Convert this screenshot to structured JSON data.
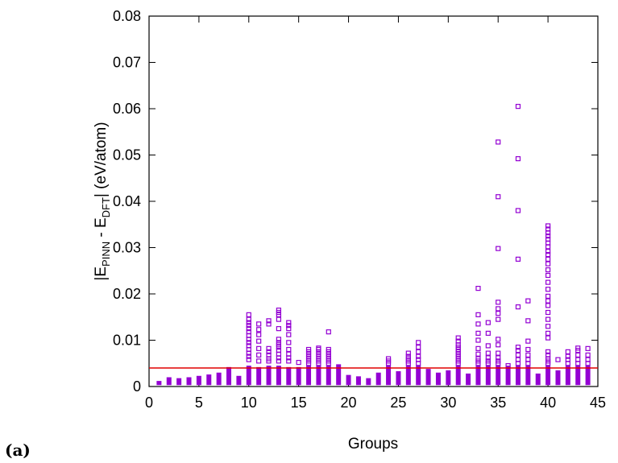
{
  "chart_data": {
    "type": "scatter",
    "xlabel": "Groups",
    "ylabel_parts": {
      "base1": "|E",
      "sub1": "PINN",
      "base2": " - E",
      "sub2": "DFT",
      "base3": "| (eV/atom)"
    },
    "xlim": [
      0,
      45
    ],
    "ylim": [
      0,
      0.08
    ],
    "xticks": [
      0,
      5,
      10,
      15,
      20,
      25,
      30,
      35,
      40,
      45
    ],
    "yticks": [
      0,
      0.01,
      0.02,
      0.03,
      0.04,
      0.05,
      0.06,
      0.07,
      0.08
    ],
    "ytick_labels": [
      "0",
      "0.01",
      "0.02",
      "0.03",
      "0.04",
      "0.05",
      "0.06",
      "0.07",
      "0.08"
    ],
    "grid": false,
    "marker": "open-square",
    "series_color": "#9400D3",
    "threshold_line": {
      "y": 0.004,
      "color": "#E00000"
    },
    "groups": [
      {
        "x": 1,
        "max": 0.0012,
        "outliers": []
      },
      {
        "x": 2,
        "max": 0.002,
        "outliers": []
      },
      {
        "x": 3,
        "max": 0.0018,
        "outliers": []
      },
      {
        "x": 4,
        "max": 0.002,
        "outliers": []
      },
      {
        "x": 5,
        "max": 0.0023,
        "outliers": []
      },
      {
        "x": 6,
        "max": 0.0026,
        "outliers": []
      },
      {
        "x": 7,
        "max": 0.003,
        "outliers": []
      },
      {
        "x": 8,
        "max": 0.0042,
        "outliers": []
      },
      {
        "x": 9,
        "max": 0.0023,
        "outliers": []
      },
      {
        "x": 10,
        "max": 0.0045,
        "outliers": [
          0.0058,
          0.0065,
          0.0072,
          0.008,
          0.0088,
          0.0095,
          0.0102,
          0.011,
          0.0118,
          0.0125,
          0.0132,
          0.0138,
          0.0145,
          0.0155
        ]
      },
      {
        "x": 11,
        "max": 0.0042,
        "outliers": [
          0.0055,
          0.0068,
          0.0082,
          0.0098,
          0.0112,
          0.0123,
          0.0135
        ]
      },
      {
        "x": 12,
        "max": 0.0045,
        "outliers": [
          0.0055,
          0.006,
          0.0068,
          0.0075,
          0.0082,
          0.0135,
          0.0142
        ]
      },
      {
        "x": 13,
        "max": 0.0045,
        "outliers": [
          0.0055,
          0.0062,
          0.007,
          0.0078,
          0.0085,
          0.009,
          0.0095,
          0.0102,
          0.0125,
          0.0145,
          0.0155,
          0.016,
          0.0165
        ]
      },
      {
        "x": 14,
        "max": 0.0042,
        "outliers": [
          0.0055,
          0.0062,
          0.007,
          0.008,
          0.0095,
          0.0112,
          0.0125,
          0.0132,
          0.0138
        ]
      },
      {
        "x": 15,
        "max": 0.0042,
        "outliers": [
          0.0052
        ]
      },
      {
        "x": 16,
        "max": 0.0045,
        "outliers": [
          0.005,
          0.0055,
          0.006,
          0.0065,
          0.007,
          0.0075,
          0.008
        ]
      },
      {
        "x": 17,
        "max": 0.0045,
        "outliers": [
          0.005,
          0.0055,
          0.006,
          0.0065,
          0.007,
          0.0075,
          0.008,
          0.0083
        ]
      },
      {
        "x": 18,
        "max": 0.0045,
        "outliers": [
          0.005,
          0.0055,
          0.006,
          0.0065,
          0.007,
          0.0075,
          0.008,
          0.0118
        ]
      },
      {
        "x": 19,
        "max": 0.0048,
        "outliers": []
      },
      {
        "x": 20,
        "max": 0.0025,
        "outliers": []
      },
      {
        "x": 21,
        "max": 0.0022,
        "outliers": []
      },
      {
        "x": 22,
        "max": 0.0018,
        "outliers": []
      },
      {
        "x": 23,
        "max": 0.003,
        "outliers": []
      },
      {
        "x": 24,
        "max": 0.0045,
        "outliers": [
          0.005,
          0.0055,
          0.006
        ]
      },
      {
        "x": 25,
        "max": 0.0033,
        "outliers": []
      },
      {
        "x": 26,
        "max": 0.0045,
        "outliers": [
          0.005,
          0.0055,
          0.006,
          0.0065,
          0.0072
        ]
      },
      {
        "x": 27,
        "max": 0.0045,
        "outliers": [
          0.005,
          0.0058,
          0.0065,
          0.0075,
          0.0085,
          0.0095
        ]
      },
      {
        "x": 28,
        "max": 0.0038,
        "outliers": []
      },
      {
        "x": 29,
        "max": 0.003,
        "outliers": []
      },
      {
        "x": 30,
        "max": 0.0035,
        "outliers": []
      },
      {
        "x": 31,
        "max": 0.0045,
        "outliers": [
          0.005,
          0.0055,
          0.006,
          0.0065,
          0.007,
          0.0075,
          0.008,
          0.0085,
          0.009,
          0.0098,
          0.0105
        ]
      },
      {
        "x": 32,
        "max": 0.0028,
        "outliers": []
      },
      {
        "x": 33,
        "max": 0.0045,
        "outliers": [
          0.005,
          0.0055,
          0.006,
          0.007,
          0.0082,
          0.01,
          0.0115,
          0.0135,
          0.0155,
          0.0212
        ]
      },
      {
        "x": 34,
        "max": 0.0045,
        "outliers": [
          0.005,
          0.0055,
          0.0062,
          0.0072,
          0.0088,
          0.0115,
          0.0138
        ]
      },
      {
        "x": 35,
        "max": 0.0045,
        "outliers": [
          0.005,
          0.0055,
          0.0062,
          0.0072,
          0.009,
          0.0102,
          0.0145,
          0.0158,
          0.0168,
          0.0182,
          0.0298,
          0.041,
          0.0528
        ]
      },
      {
        "x": 36,
        "max": 0.0045,
        "outliers": [
          0.0045
        ]
      },
      {
        "x": 37,
        "max": 0.0045,
        "outliers": [
          0.005,
          0.0058,
          0.0068,
          0.0078,
          0.0085,
          0.0172,
          0.0275,
          0.038,
          0.0492,
          0.0605
        ]
      },
      {
        "x": 38,
        "max": 0.0045,
        "outliers": [
          0.005,
          0.0058,
          0.0068,
          0.008,
          0.0098,
          0.0142,
          0.0185
        ]
      },
      {
        "x": 39,
        "max": 0.0028,
        "outliers": []
      },
      {
        "x": 40,
        "max": 0.0045,
        "outliers": [
          0.005,
          0.0055,
          0.006,
          0.0068,
          0.0075,
          0.0105,
          0.0115,
          0.013,
          0.0145,
          0.016,
          0.0175,
          0.0185,
          0.0195,
          0.021,
          0.0225,
          0.024,
          0.0252,
          0.0265,
          0.0275,
          0.0285,
          0.0292,
          0.0302,
          0.031,
          0.0318,
          0.0325,
          0.0332,
          0.034,
          0.0347
        ]
      },
      {
        "x": 41,
        "max": 0.0035,
        "outliers": [
          0.0058
        ]
      },
      {
        "x": 42,
        "max": 0.0045,
        "outliers": [
          0.005,
          0.0058,
          0.0065,
          0.0075
        ]
      },
      {
        "x": 43,
        "max": 0.0045,
        "outliers": [
          0.005,
          0.0058,
          0.0068,
          0.0078,
          0.0083
        ]
      },
      {
        "x": 44,
        "max": 0.0045,
        "outliers": [
          0.005,
          0.0058,
          0.0068,
          0.0082
        ]
      }
    ]
  },
  "panel_label": "(a)"
}
